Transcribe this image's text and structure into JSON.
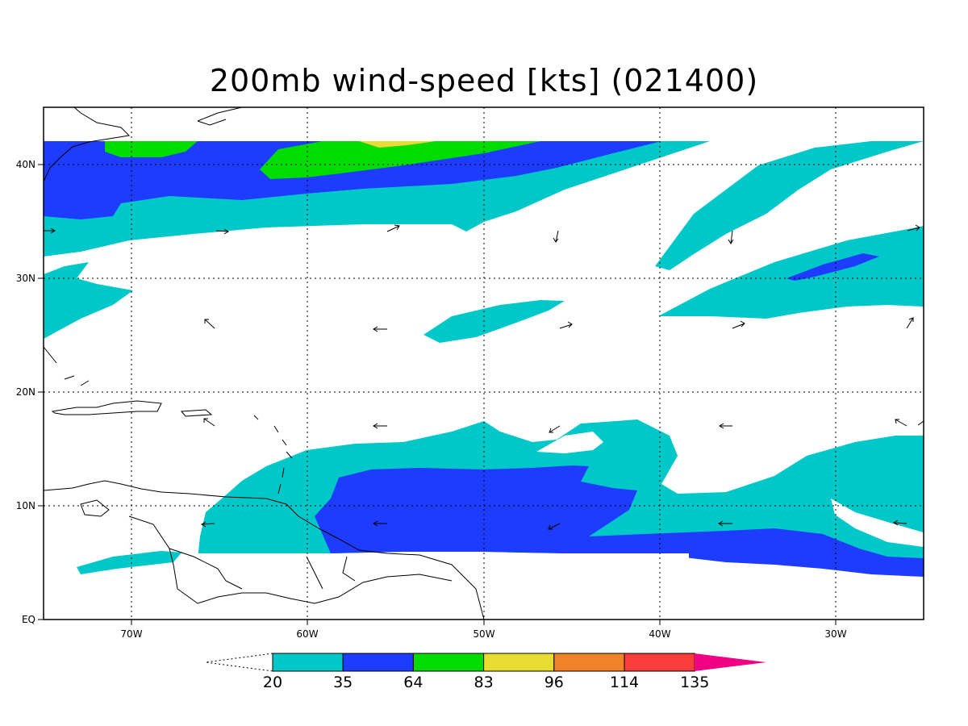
{
  "title": "200mb wind-speed [kts] (021400)",
  "map": {
    "lon_range": [
      -75,
      -25
    ],
    "lat_range": [
      0,
      45
    ],
    "x_ticks": [
      "70W",
      "60W",
      "50W",
      "40W",
      "30W"
    ],
    "y_ticks": [
      "EQ",
      "10N",
      "20N",
      "30N",
      "40N"
    ],
    "grid": true,
    "region": "Caribbean and tropical/subtropical North Atlantic"
  },
  "colorbar": {
    "levels": [
      "20",
      "35",
      "64",
      "83",
      "96",
      "114",
      "135"
    ],
    "colors": [
      "#00c8c8",
      "#1e3cff",
      "#00dc00",
      "#e6dc32",
      "#f08228",
      "#fa3c3c",
      "#f00082"
    ],
    "under_arrow": "white (below 20)",
    "over_arrow": "magenta (above 135)"
  },
  "wind_arrows": "sparse black vectors showing 200mb wind direction"
}
